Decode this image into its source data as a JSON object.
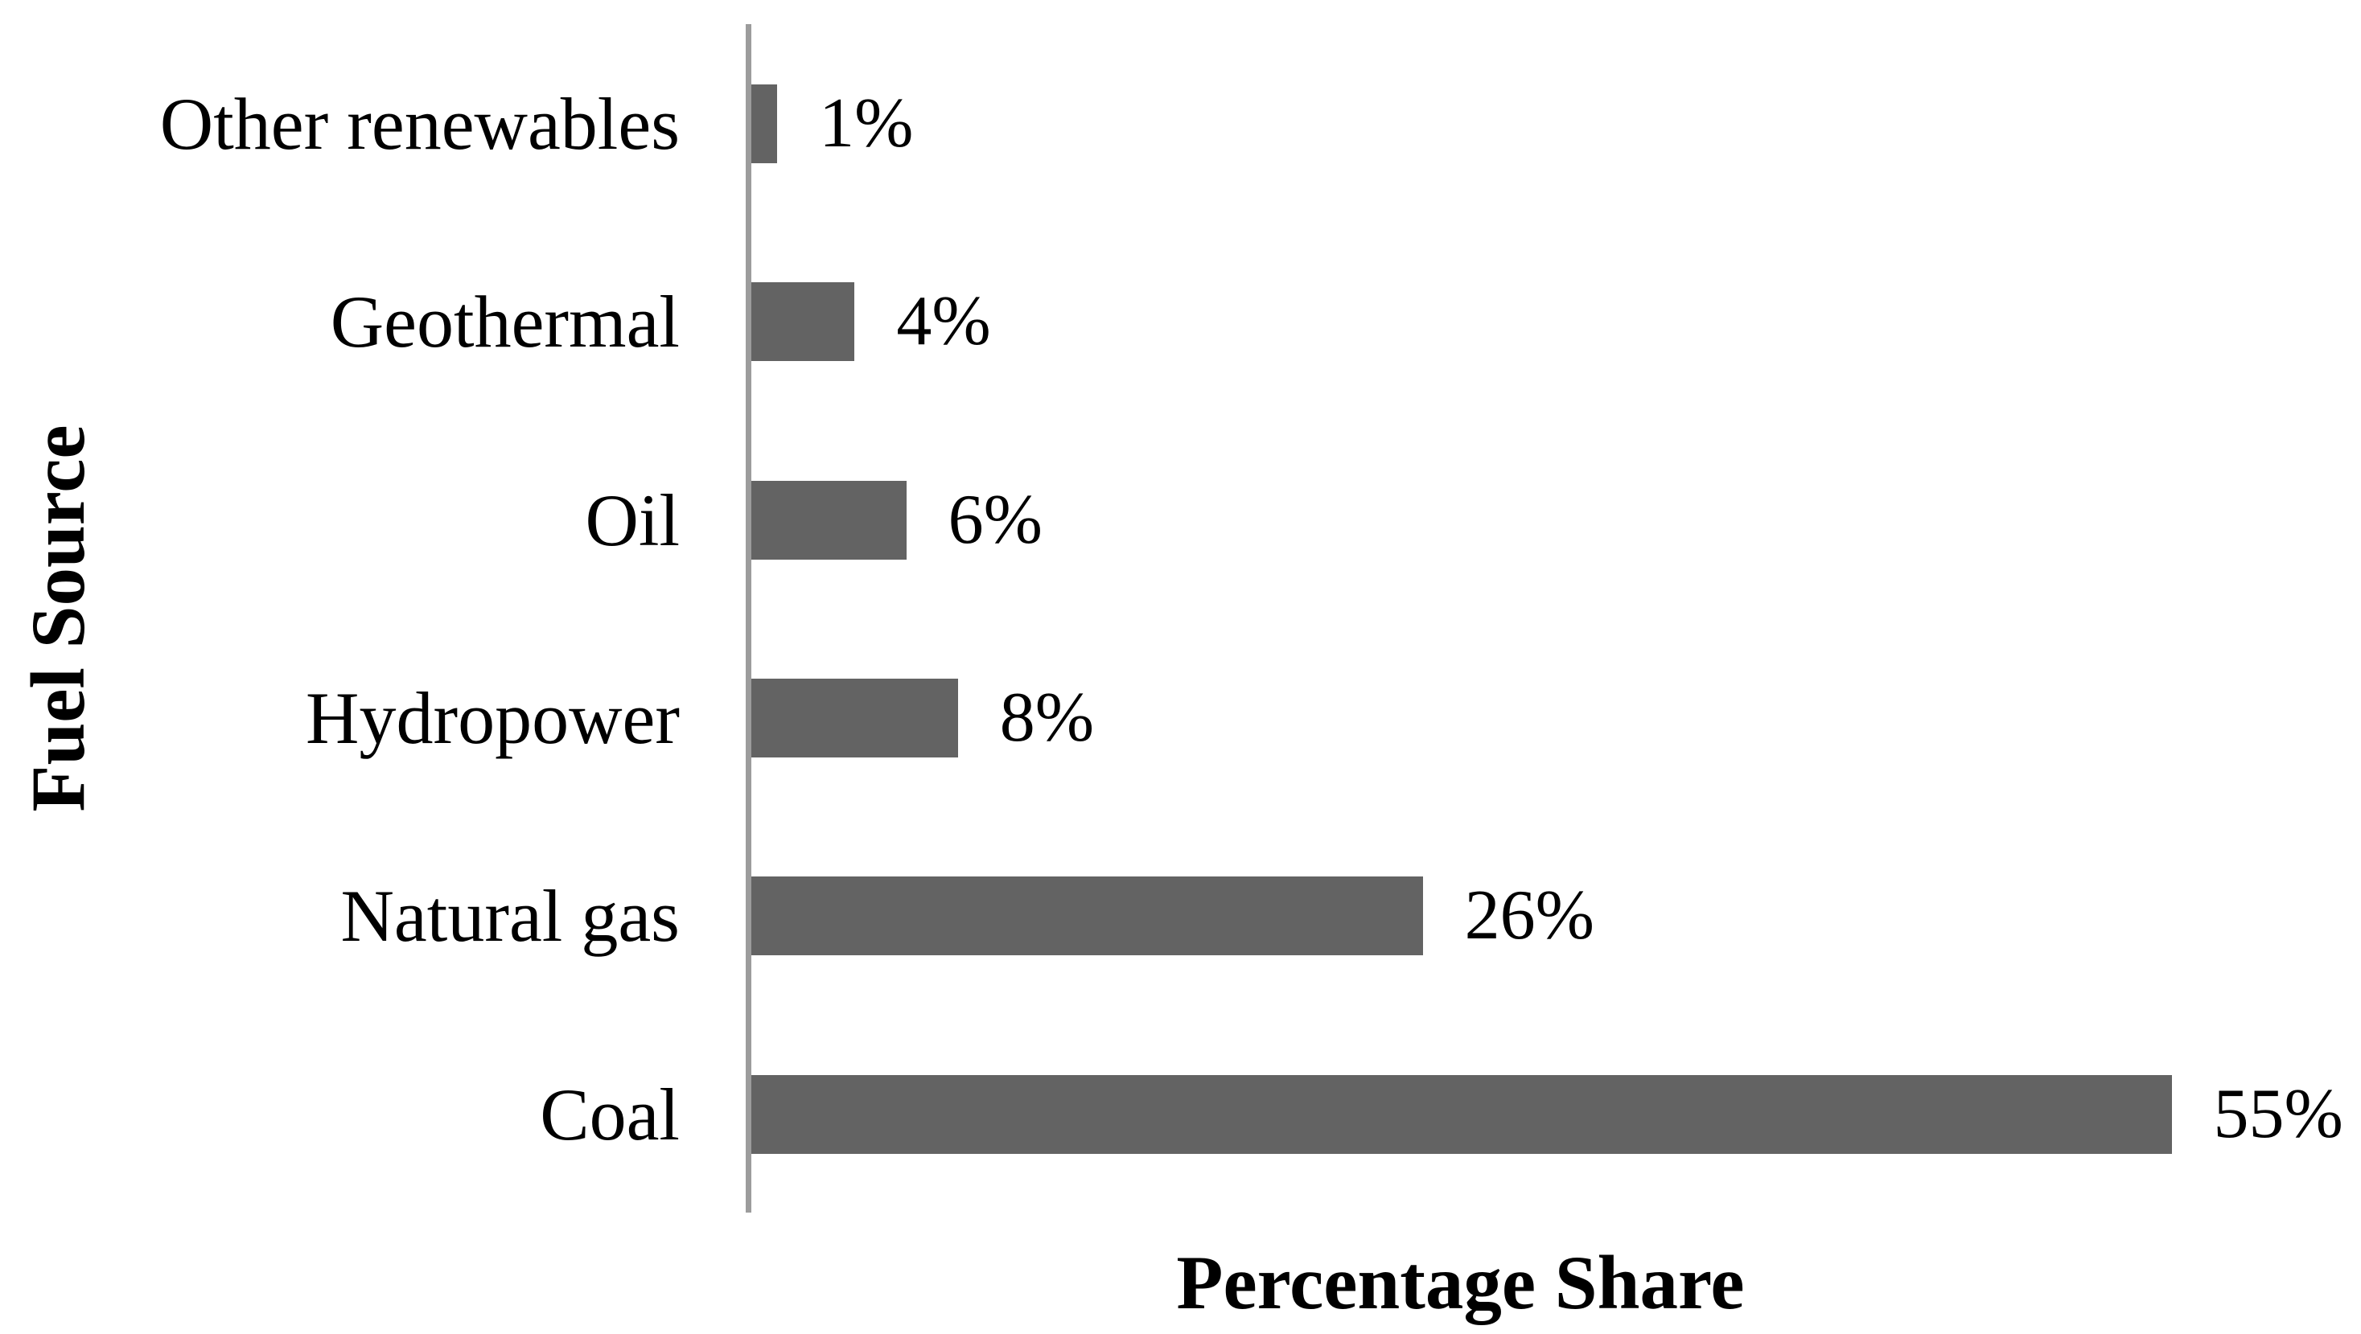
{
  "chart_data": {
    "type": "bar",
    "orientation": "horizontal",
    "categories": [
      "Other renewables",
      "Geothermal",
      "Oil",
      "Hydropower",
      "Natural gas",
      "Coal"
    ],
    "values": [
      1,
      4,
      6,
      8,
      26,
      55
    ],
    "data_labels": [
      "1%",
      "4%",
      "6%",
      "8%",
      "26%",
      "55%"
    ],
    "xlabel": "Percentage Share",
    "ylabel": "Fuel Source",
    "title": "",
    "xlim": [
      0,
      61
    ],
    "grid": false,
    "legend": "none",
    "bar_color": "#636363",
    "axis_line_color": "#9C9C9C",
    "text_color": "#000000"
  }
}
